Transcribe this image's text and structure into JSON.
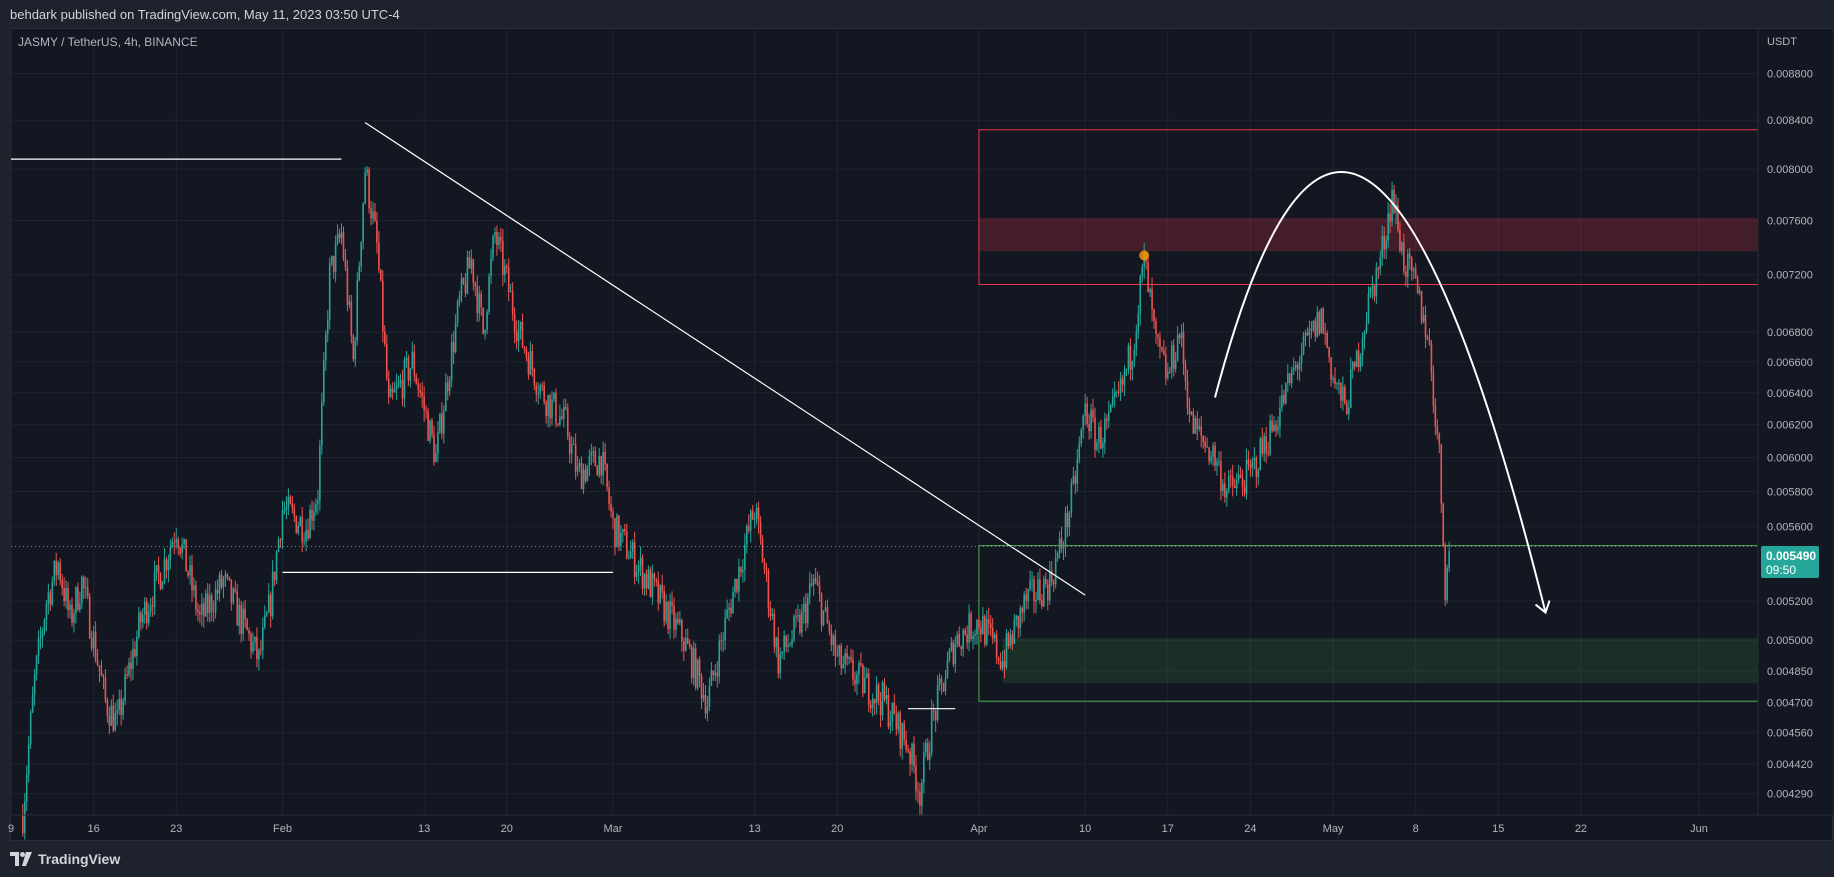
{
  "header": {
    "publisher_text": "behdark published on TradingView.com, May 11, 2023 03:50 UTC-4"
  },
  "symbol_label": "JASMY / TetherUS, 4h, BINANCE",
  "footer": {
    "brand": "TradingView"
  },
  "price_badge": {
    "price": "0.005490",
    "countdown": "09:50"
  },
  "colors": {
    "up": "#26a69a",
    "down": "#ef5350",
    "background": "#131722",
    "grid": "#1f2330",
    "axis_text": "#b2b5be",
    "supply_zone": "#f23645",
    "demand_zone": "#4caf50",
    "drawing": "#ffffff",
    "accent_dot": "#ff9800"
  },
  "chart_data": {
    "type": "candlestick",
    "title": "JASMY / TetherUS, 4h, BINANCE",
    "x_axis": {
      "range": [
        "2023-01-09",
        "2023-06-06"
      ],
      "tick_labels": [
        "9",
        "16",
        "23",
        "Feb",
        "13",
        "20",
        "Mar",
        "13",
        "20",
        "Apr",
        "10",
        "17",
        "24",
        "May",
        "8",
        "15",
        "22",
        "Jun"
      ],
      "tick_dates": [
        "2023-01-09",
        "2023-01-16",
        "2023-01-23",
        "2023-02-01",
        "2023-02-13",
        "2023-02-20",
        "2023-03-01",
        "2023-03-13",
        "2023-03-20",
        "2023-04-01",
        "2023-04-10",
        "2023-04-17",
        "2023-04-24",
        "2023-05-01",
        "2023-05-08",
        "2023-05-15",
        "2023-05-22",
        "2023-06-01"
      ]
    },
    "y_axis": {
      "unit_label": "USDT",
      "scale": "log",
      "range": [
        0.0042,
        0.0092
      ],
      "tick_labels": [
        "0.008800",
        "0.008400",
        "0.008000",
        "0.007600",
        "0.007200",
        "0.006800",
        "0.006600",
        "0.006400",
        "0.006200",
        "0.006000",
        "0.005800",
        "0.005600",
        "0.005200",
        "0.005000",
        "0.004850",
        "0.004700",
        "0.004560",
        "0.004420",
        "0.004290"
      ]
    },
    "grid": true,
    "price_path": [
      [
        "2023-01-10",
        0.0042
      ],
      [
        "2023-01-11",
        0.0048
      ],
      [
        "2023-01-12",
        0.0052
      ],
      [
        "2023-01-13",
        0.0054
      ],
      [
        "2023-01-14",
        0.0051
      ],
      [
        "2023-01-15",
        0.0053
      ],
      [
        "2023-01-17",
        0.0047
      ],
      [
        "2023-01-18",
        0.0046
      ],
      [
        "2023-01-20",
        0.0051
      ],
      [
        "2023-01-22",
        0.0054
      ],
      [
        "2023-01-23",
        0.0056
      ],
      [
        "2023-01-25",
        0.0051
      ],
      [
        "2023-01-27",
        0.0053
      ],
      [
        "2023-01-30",
        0.0049
      ],
      [
        "2023-01-31",
        0.0052
      ],
      [
        "2023-02-01",
        0.0057
      ],
      [
        "2023-02-03",
        0.0056
      ],
      [
        "2023-02-04",
        0.0058
      ],
      [
        "2023-02-05",
        0.0072
      ],
      [
        "2023-02-06",
        0.0075
      ],
      [
        "2023-02-07",
        0.0066
      ],
      [
        "2023-02-08",
        0.008
      ],
      [
        "2023-02-09",
        0.0074
      ],
      [
        "2023-02-10",
        0.0063
      ],
      [
        "2023-02-12",
        0.0066
      ],
      [
        "2023-02-14",
        0.006
      ],
      [
        "2023-02-16",
        0.007
      ],
      [
        "2023-02-17",
        0.0073
      ],
      [
        "2023-02-18",
        0.0068
      ],
      [
        "2023-02-19",
        0.0075
      ],
      [
        "2023-02-21",
        0.0068
      ],
      [
        "2023-02-23",
        0.0064
      ],
      [
        "2023-02-25",
        0.0062
      ],
      [
        "2023-02-26",
        0.0059
      ],
      [
        "2023-02-28",
        0.006
      ],
      [
        "2023-03-01",
        0.0056
      ],
      [
        "2023-03-03",
        0.0054
      ],
      [
        "2023-03-05",
        0.0052
      ],
      [
        "2023-03-07",
        0.005
      ],
      [
        "2023-03-09",
        0.0047
      ],
      [
        "2023-03-11",
        0.0052
      ],
      [
        "2023-03-13",
        0.0057
      ],
      [
        "2023-03-15",
        0.0049
      ],
      [
        "2023-03-17",
        0.0051
      ],
      [
        "2023-03-18",
        0.0053
      ],
      [
        "2023-03-20",
        0.0049
      ],
      [
        "2023-03-22",
        0.0048
      ],
      [
        "2023-03-24",
        0.0047
      ],
      [
        "2023-03-26",
        0.0045
      ],
      [
        "2023-03-27",
        0.0043
      ],
      [
        "2023-03-28",
        0.0046
      ],
      [
        "2023-03-30",
        0.005
      ],
      [
        "2023-04-01",
        0.0051
      ],
      [
        "2023-04-03",
        0.0049
      ],
      [
        "2023-04-05",
        0.0052
      ],
      [
        "2023-04-07",
        0.0053
      ],
      [
        "2023-04-08",
        0.0055
      ],
      [
        "2023-04-09",
        0.0058
      ],
      [
        "2023-04-10",
        0.0063
      ],
      [
        "2023-04-11",
        0.0061
      ],
      [
        "2023-04-12",
        0.0062
      ],
      [
        "2023-04-13",
        0.0064
      ],
      [
        "2023-04-14",
        0.0067
      ],
      [
        "2023-04-15",
        0.0073
      ],
      [
        "2023-04-16",
        0.0067
      ],
      [
        "2023-04-17",
        0.0065
      ],
      [
        "2023-04-18",
        0.0068
      ],
      [
        "2023-04-19",
        0.0062
      ],
      [
        "2023-04-21",
        0.006
      ],
      [
        "2023-04-22",
        0.0058
      ],
      [
        "2023-04-24",
        0.0059
      ],
      [
        "2023-04-26",
        0.0062
      ],
      [
        "2023-04-28",
        0.0066
      ],
      [
        "2023-04-30",
        0.0069
      ],
      [
        "2023-05-01",
        0.0065
      ],
      [
        "2023-05-02",
        0.0063
      ],
      [
        "2023-05-03",
        0.0066
      ],
      [
        "2023-05-04",
        0.007
      ],
      [
        "2023-05-05",
        0.0073
      ],
      [
        "2023-05-06",
        0.0078
      ],
      [
        "2023-05-07",
        0.0073
      ],
      [
        "2023-05-08",
        0.0071
      ],
      [
        "2023-05-09",
        0.0068
      ],
      [
        "2023-05-10",
        0.006
      ],
      [
        "2023-05-10T12:00",
        0.0053
      ],
      [
        "2023-05-11",
        0.0055
      ]
    ],
    "zones": [
      {
        "kind": "supply",
        "x0": "2023-04-01",
        "x1": "2023-06-06",
        "y_low": 0.00713,
        "y_high": 0.00832
      },
      {
        "kind": "supply-core",
        "x0": "2023-04-01",
        "x1": "2023-06-06",
        "y_low": 0.00737,
        "y_high": 0.00762
      },
      {
        "kind": "demand",
        "x0": "2023-04-01",
        "x1": "2023-06-06",
        "y_low": 0.004705,
        "y_high": 0.005495
      },
      {
        "kind": "demand-core",
        "x0": "2023-04-03",
        "x1": "2023-06-06",
        "y_low": 0.00479,
        "y_high": 0.00501
      }
    ],
    "lines": [
      {
        "kind": "horizontal",
        "x0": "2023-01-09",
        "x1": "2023-02-06",
        "y": 0.00808
      },
      {
        "kind": "horizontal",
        "x0": "2023-02-01",
        "x1": "2023-03-01",
        "y": 0.00535
      },
      {
        "kind": "horizontal",
        "x0": "2023-03-26",
        "x1": "2023-03-30",
        "y": 0.00467
      },
      {
        "kind": "trendline",
        "x0": "2023-02-08",
        "y0": 0.00838,
        "x1": "2023-04-10",
        "y1": 0.00523
      }
    ],
    "arrow_path": [
      [
        "2023-04-21",
        0.00637
      ],
      [
        "2023-05-04",
        0.00775
      ],
      [
        "2023-05-19",
        0.00514
      ]
    ],
    "marker": {
      "date": "2023-04-15",
      "value": 0.00734
    },
    "last_price": 0.00549
  }
}
